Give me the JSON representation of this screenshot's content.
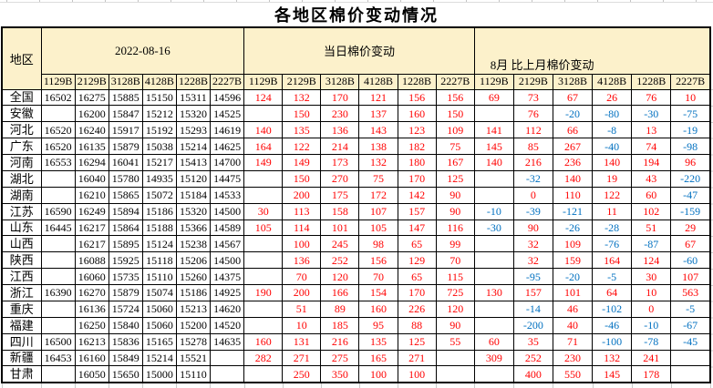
{
  "title": "各地区棉价变动情况",
  "colors": {
    "header_bg": "#fcf1cb",
    "positive": "#ff0000",
    "negative": "#0070c0",
    "border": "#000000"
  },
  "table": {
    "region_header": "地区",
    "group_headers": [
      "2022-08-16",
      "当日棉价变动",
      "8月 比上月棉价变动"
    ],
    "grade_columns": [
      "1129B",
      "2129B",
      "3128B",
      "4128B",
      "1228B",
      "2227B"
    ],
    "rows": [
      {
        "region": "全国",
        "prices": [
          "16502",
          "16275",
          "15885",
          "15150",
          "15311",
          "14596"
        ],
        "daily_change": [
          "124",
          "132",
          "170",
          "121",
          "156",
          "156"
        ],
        "monthly_change": [
          "69",
          "73",
          "67",
          "26",
          "76",
          "10"
        ]
      },
      {
        "region": "安徽",
        "prices": [
          "",
          "16200",
          "15847",
          "15212",
          "15320",
          "14525"
        ],
        "daily_change": [
          "",
          "150",
          "230",
          "137",
          "160",
          "150"
        ],
        "monthly_change": [
          "",
          "76",
          "-20",
          "-80",
          "-30",
          "-75"
        ]
      },
      {
        "region": "河北",
        "prices": [
          "16520",
          "16240",
          "15917",
          "15192",
          "15293",
          "14619"
        ],
        "daily_change": [
          "140",
          "135",
          "136",
          "143",
          "123",
          "109"
        ],
        "monthly_change": [
          "141",
          "112",
          "66",
          "-8",
          "13",
          "-19"
        ]
      },
      {
        "region": "广东",
        "prices": [
          "16520",
          "16135",
          "15879",
          "15038",
          "15214",
          "14625"
        ],
        "daily_change": [
          "164",
          "122",
          "214",
          "138",
          "182",
          "75"
        ],
        "monthly_change": [
          "145",
          "85",
          "267",
          "-40",
          "74",
          "-98"
        ]
      },
      {
        "region": "河南",
        "prices": [
          "16553",
          "16294",
          "16041",
          "15217",
          "15413",
          "14700"
        ],
        "daily_change": [
          "149",
          "149",
          "173",
          "132",
          "180",
          "167"
        ],
        "monthly_change": [
          "140",
          "216",
          "236",
          "140",
          "194",
          "96"
        ]
      },
      {
        "region": "湖北",
        "prices": [
          "",
          "16040",
          "15780",
          "14935",
          "15120",
          "14475"
        ],
        "daily_change": [
          "",
          "150",
          "270",
          "75",
          "170",
          "125"
        ],
        "monthly_change": [
          "",
          "-32",
          "140",
          "19",
          "43",
          "-220"
        ]
      },
      {
        "region": "湖南",
        "prices": [
          "",
          "16210",
          "15865",
          "15072",
          "15184",
          "14533"
        ],
        "daily_change": [
          "",
          "200",
          "175",
          "172",
          "142",
          "90"
        ],
        "monthly_change": [
          "",
          "0",
          "110",
          "122",
          "60",
          "-47"
        ]
      },
      {
        "region": "江苏",
        "prices": [
          "16590",
          "16249",
          "15894",
          "15186",
          "15320",
          "14500"
        ],
        "daily_change": [
          "30",
          "113",
          "158",
          "107",
          "157",
          "90"
        ],
        "monthly_change": [
          "-10",
          "-39",
          "-121",
          "11",
          "102",
          "-159"
        ]
      },
      {
        "region": "山东",
        "prices": [
          "16445",
          "16217",
          "15864",
          "15188",
          "15366",
          "14589"
        ],
        "daily_change": [
          "105",
          "114",
          "101",
          "105",
          "147",
          "116"
        ],
        "monthly_change": [
          "-30",
          "90",
          "-26",
          "-28",
          "51",
          "29"
        ]
      },
      {
        "region": "山西",
        "prices": [
          "",
          "16217",
          "15895",
          "15124",
          "15238",
          "14567"
        ],
        "daily_change": [
          "",
          "100",
          "245",
          "98",
          "65",
          "99"
        ],
        "monthly_change": [
          "",
          "32",
          "109",
          "-76",
          "-87",
          "67"
        ]
      },
      {
        "region": "陕西",
        "prices": [
          "",
          "16088",
          "15925",
          "15118",
          "15206",
          "14500"
        ],
        "daily_change": [
          "",
          "136",
          "252",
          "156",
          "129",
          "70"
        ],
        "monthly_change": [
          "",
          "32",
          "159",
          "164",
          "124",
          "-60"
        ]
      },
      {
        "region": "江西",
        "prices": [
          "",
          "16060",
          "15735",
          "15110",
          "15260",
          "14375"
        ],
        "daily_change": [
          "",
          "70",
          "120",
          "70",
          "65",
          "115"
        ],
        "monthly_change": [
          "",
          "-95",
          "-20",
          "-5",
          "30",
          "107"
        ]
      },
      {
        "region": "浙江",
        "prices": [
          "16390",
          "16270",
          "15879",
          "15074",
          "15186",
          "14925"
        ],
        "daily_change": [
          "190",
          "200",
          "166",
          "154",
          "170",
          "725"
        ],
        "monthly_change": [
          "130",
          "157",
          "101",
          "64",
          "10",
          "563"
        ]
      },
      {
        "region": "重庆",
        "prices": [
          "",
          "16136",
          "15724",
          "15060",
          "15213",
          "14620"
        ],
        "daily_change": [
          "",
          "51",
          "89",
          "160",
          "226",
          "120"
        ],
        "monthly_change": [
          "",
          "-14",
          "46",
          "-102",
          "0",
          "-5"
        ]
      },
      {
        "region": "福建",
        "prices": [
          "",
          "16250",
          "15840",
          "15060",
          "15200",
          "14520"
        ],
        "daily_change": [
          "",
          "10",
          "185",
          "95",
          "88",
          "90"
        ],
        "monthly_change": [
          "",
          "-200",
          "40",
          "-46",
          "-10",
          "-67"
        ]
      },
      {
        "region": "四川",
        "prices": [
          "16500",
          "16213",
          "15836",
          "15165",
          "15278",
          "14635"
        ],
        "daily_change": [
          "160",
          "131",
          "216",
          "135",
          "125",
          "55"
        ],
        "monthly_change": [
          "60",
          "35",
          "71",
          "-100",
          "-78",
          "-45"
        ]
      },
      {
        "region": "新疆",
        "prices": [
          "16453",
          "16160",
          "15849",
          "15214",
          "15521",
          ""
        ],
        "daily_change": [
          "282",
          "271",
          "275",
          "165",
          "271",
          ""
        ],
        "monthly_change": [
          "309",
          "252",
          "230",
          "132",
          "241",
          ""
        ]
      },
      {
        "region": "甘肃",
        "prices": [
          "",
          "16050",
          "15650",
          "15000",
          "15110",
          ""
        ],
        "daily_change": [
          "",
          "250",
          "350",
          "100",
          "100",
          ""
        ],
        "monthly_change": [
          "",
          "400",
          "550",
          "145",
          "178",
          ""
        ]
      }
    ]
  }
}
